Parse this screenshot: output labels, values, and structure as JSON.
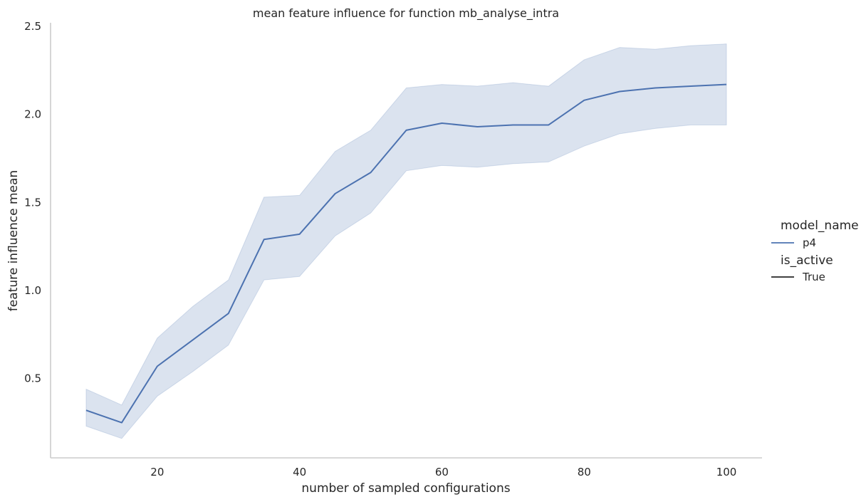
{
  "chart_data": {
    "type": "line",
    "title": "mean feature influence for function mb_analyse_intra",
    "xlabel": "number of sampled configurations",
    "ylabel": "feature influence mean",
    "xlim": [
      5,
      105
    ],
    "ylim": [
      0.05,
      2.52
    ],
    "xticks": [
      20,
      40,
      60,
      80,
      100
    ],
    "xtick_labels": [
      "20",
      "40",
      "60",
      "80",
      "100"
    ],
    "yticks": [
      0.5,
      1.0,
      1.5,
      2.0,
      2.5
    ],
    "ytick_labels": [
      "0.5",
      "1.0",
      "1.5",
      "2.0",
      "2.5"
    ],
    "grid": false,
    "legend_position": "right",
    "legend": {
      "hue_title": "model_name",
      "hue_entries": [
        {
          "label": "p4",
          "color": "#4c72b0"
        }
      ],
      "style_title": "is_active",
      "style_entries": [
        {
          "label": "True",
          "color": "#262626"
        }
      ]
    },
    "x": [
      10,
      15,
      20,
      25,
      30,
      35,
      40,
      45,
      50,
      55,
      60,
      65,
      70,
      75,
      80,
      85,
      90,
      95,
      100
    ],
    "series": [
      {
        "name": "p4",
        "color": "#4c72b0",
        "values": [
          0.32,
          0.25,
          0.57,
          0.72,
          0.87,
          1.29,
          1.32,
          1.55,
          1.67,
          1.91,
          1.95,
          1.93,
          1.94,
          1.94,
          2.08,
          2.13,
          2.15,
          2.16,
          2.17
        ],
        "ci_lower": [
          0.23,
          0.16,
          0.4,
          0.54,
          0.69,
          1.06,
          1.08,
          1.31,
          1.44,
          1.68,
          1.71,
          1.7,
          1.72,
          1.73,
          1.82,
          1.89,
          1.92,
          1.94,
          1.94
        ],
        "ci_upper": [
          0.44,
          0.35,
          0.73,
          0.91,
          1.06,
          1.53,
          1.54,
          1.79,
          1.91,
          2.15,
          2.17,
          2.16,
          2.18,
          2.16,
          2.31,
          2.38,
          2.37,
          2.39,
          2.4
        ]
      }
    ]
  }
}
